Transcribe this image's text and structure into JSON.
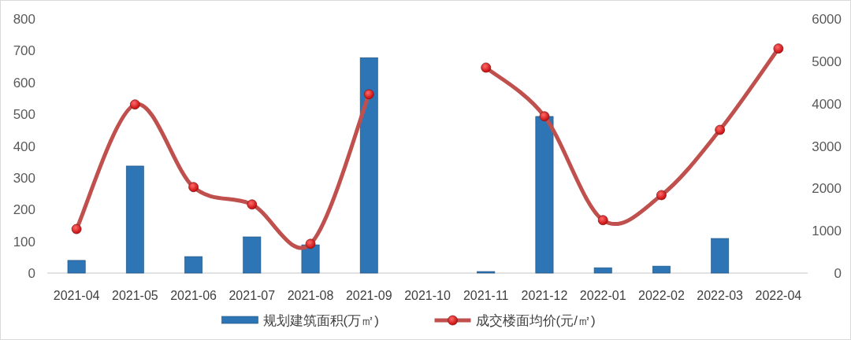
{
  "chart_data": {
    "type": "bar",
    "categories": [
      "2021-04",
      "2021-05",
      "2021-06",
      "2021-07",
      "2021-08",
      "2021-09",
      "2021-10",
      "2021-11",
      "2021-12",
      "2022-01",
      "2022-02",
      "2022-03",
      "2022-04"
    ],
    "series": [
      {
        "name": "规划建筑面积(万㎡)",
        "color": "#2e75b6",
        "values": [
          40,
          337,
          52,
          114,
          89,
          678,
          null,
          5,
          493,
          17,
          22,
          109,
          null
        ]
      },
      {
        "name": "成交楼面均价(元/㎡)",
        "type": "line",
        "axis": "y2",
        "color": "#c0504d",
        "values": [
          1040,
          3980,
          2030,
          1620,
          690,
          4220,
          null,
          4850,
          3700,
          1250,
          1840,
          3380,
          5300
        ]
      }
    ],
    "ylim": [
      0,
      800
    ],
    "yticks": [
      0,
      100,
      200,
      300,
      400,
      500,
      600,
      700,
      800
    ],
    "y2lim": [
      0,
      6000
    ],
    "y2ticks": [
      0,
      1000,
      2000,
      3000,
      4000,
      5000,
      6000
    ],
    "legend": "bottom",
    "marker": "circle"
  }
}
